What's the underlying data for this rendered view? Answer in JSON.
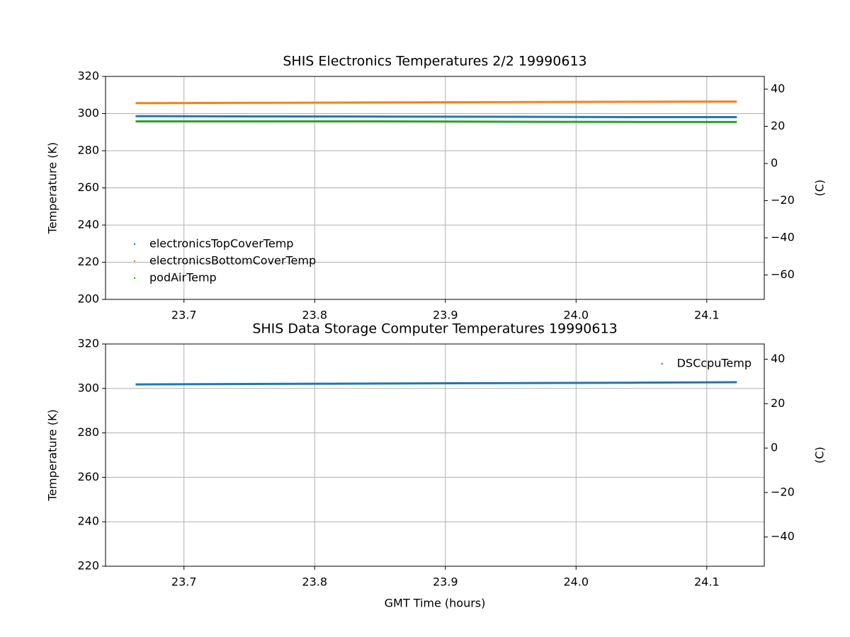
{
  "chart_data": [
    {
      "type": "line",
      "title": "SHIS Electronics Temperatures 2/2 19990613",
      "ylabel": "Temperature (K)",
      "y2label": "(C)",
      "x": [
        23.663,
        23.75,
        23.85,
        23.95,
        24.05,
        24.123
      ],
      "series": [
        {
          "name": "electronicsTopCoverTemp",
          "color": "#1f77b4",
          "values": [
            298.6,
            298.5,
            298.4,
            298.3,
            298.1,
            298.1
          ]
        },
        {
          "name": "electronicsBottomCoverTemp",
          "color": "#ff7f0e",
          "values": [
            305.6,
            305.8,
            306.0,
            306.2,
            306.4,
            306.5
          ]
        },
        {
          "name": "podAirTemp",
          "color": "#2ca02c",
          "values": [
            295.8,
            295.8,
            295.8,
            295.6,
            295.5,
            295.5
          ]
        }
      ],
      "xlim": [
        23.64,
        24.144
      ],
      "xticks": [
        23.7,
        23.8,
        23.9,
        {
          "value": 24,
          "label": "24.0"
        },
        24.1
      ],
      "ylim": [
        200,
        320
      ],
      "yticks": [
        200,
        220,
        240,
        260,
        280,
        300,
        320
      ],
      "y2lim": [
        -73.15,
        46.85
      ],
      "y2ticks": [
        {
          "value": -60,
          "label": "−60"
        },
        {
          "value": -40,
          "label": "−40"
        },
        {
          "value": -20,
          "label": "−20"
        },
        0,
        20,
        40
      ],
      "grid": true,
      "legend": "lower left"
    },
    {
      "type": "line",
      "title": "SHIS Data Storage Computer Temperatures 19990613",
      "xlabel": "GMT Time (hours)",
      "ylabel": "Temperature (K)",
      "y2label": "(C)",
      "x": [
        23.663,
        23.75,
        23.85,
        23.95,
        24.05,
        24.123
      ],
      "series": [
        {
          "name": "DSCcpuTemp",
          "color": "#1f77b4",
          "values": [
            301.8,
            302.0,
            302.2,
            302.4,
            302.6,
            302.8
          ]
        }
      ],
      "xlim": [
        23.64,
        24.144
      ],
      "xticks": [
        23.7,
        23.8,
        23.9,
        {
          "value": 24,
          "label": "24.0"
        },
        24.1
      ],
      "ylim": [
        220,
        320
      ],
      "yticks": [
        220,
        240,
        260,
        280,
        300,
        320
      ],
      "y2lim": [
        -53.15,
        46.85
      ],
      "y2ticks": [
        {
          "value": -40,
          "label": "−40"
        },
        {
          "value": -20,
          "label": "−20"
        },
        0,
        20,
        40
      ],
      "grid": true,
      "legend": "upper right"
    }
  ]
}
